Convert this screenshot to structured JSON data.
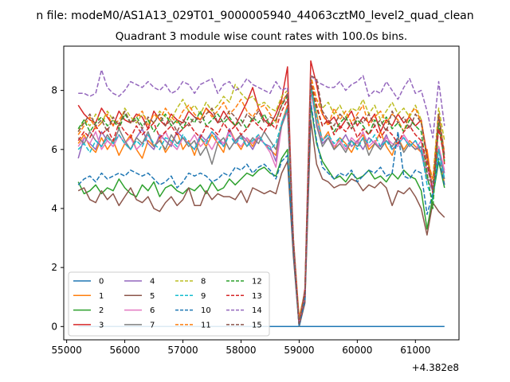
{
  "figure": {
    "suptitle": "n file: modeM0/AS1A13_029T01_9000005940_44063cztM0_level2_quad_clean",
    "title": "Quadrant 3 module wise count rates with 100.0s bins.",
    "offset_label": "+4.382e8"
  },
  "chart_data": {
    "type": "line",
    "title": "Quadrant 3 module wise count rates with 100.0s bins.",
    "xlabel": "",
    "ylabel": "",
    "x_offset_text": "+4.382e8",
    "xlim": [
      54950,
      61750
    ],
    "ylim": [
      -0.45,
      9.5
    ],
    "xticks": [
      55000,
      56000,
      57000,
      58000,
      59000,
      60000,
      61000
    ],
    "yticks": [
      0,
      2,
      4,
      6,
      8
    ],
    "grid": false,
    "legend": {
      "placement": "lower-left",
      "columns": 4
    },
    "x": [
      55200,
      55300,
      55400,
      55500,
      55600,
      55700,
      55800,
      55900,
      56000,
      56100,
      56200,
      56300,
      56400,
      56500,
      56600,
      56700,
      56800,
      56900,
      57000,
      57100,
      57200,
      57300,
      57400,
      57500,
      57600,
      57700,
      57800,
      57900,
      58000,
      58100,
      58200,
      58300,
      58400,
      58500,
      58600,
      58700,
      58800,
      58900,
      59000,
      59100,
      59200,
      59300,
      59400,
      59500,
      59600,
      59700,
      59800,
      59900,
      60000,
      60100,
      60200,
      60300,
      60400,
      60500,
      60600,
      60700,
      60800,
      60900,
      61000,
      61100,
      61200,
      61300,
      61400,
      61500
    ],
    "series": [
      {
        "name": "0",
        "color": "#1f77b4",
        "dash": "solid",
        "values": [
          0,
          0,
          0,
          0,
          0,
          0,
          0,
          0,
          0,
          0,
          0,
          0,
          0,
          0,
          0,
          0,
          0,
          0,
          0,
          0,
          0,
          0,
          0,
          0,
          0,
          0,
          0,
          0,
          0,
          0,
          0,
          0,
          0,
          0,
          0,
          0,
          0,
          0,
          0,
          0,
          0,
          0,
          0,
          0,
          0,
          0,
          0,
          0,
          0,
          0,
          0,
          0,
          0,
          0,
          0,
          0,
          0,
          0,
          0,
          0,
          0,
          0,
          0,
          0
        ]
      },
      {
        "name": "1",
        "color": "#ff7f0e",
        "dash": "solid",
        "values": [
          6.2,
          6.5,
          6.1,
          5.9,
          6.4,
          6.0,
          6.3,
          5.8,
          6.2,
          6.5,
          6.0,
          5.7,
          6.3,
          6.1,
          6.4,
          5.9,
          6.2,
          6.6,
          6.0,
          6.3,
          5.8,
          6.4,
          6.1,
          6.5,
          6.2,
          5.9,
          6.7,
          6.3,
          6.0,
          6.4,
          6.1,
          6.5,
          6.2,
          6.0,
          5.8,
          6.9,
          7.5,
          3.0,
          0.3,
          1.2,
          8.2,
          7.2,
          6.3,
          6.6,
          6.0,
          6.4,
          6.2,
          5.9,
          6.3,
          6.5,
          6.0,
          6.2,
          6.6,
          6.1,
          5.8,
          6.4,
          6.0,
          6.3,
          6.1,
          5.9,
          6.0,
          4.6,
          6.1,
          4.8
        ]
      },
      {
        "name": "2",
        "color": "#2ca02c",
        "dash": "solid",
        "values": [
          4.9,
          4.5,
          4.6,
          4.8,
          4.5,
          4.7,
          4.6,
          5.0,
          4.7,
          4.5,
          4.4,
          4.8,
          4.6,
          4.9,
          4.4,
          4.7,
          4.8,
          4.6,
          4.5,
          4.7,
          4.6,
          4.8,
          4.5,
          4.9,
          4.6,
          4.7,
          5.0,
          4.8,
          5.0,
          5.2,
          5.1,
          5.3,
          5.4,
          5.2,
          5.1,
          5.7,
          6.0,
          2.5,
          0.0,
          0.9,
          7.5,
          6.2,
          5.6,
          5.3,
          5.0,
          5.1,
          4.9,
          5.2,
          5.0,
          5.1,
          5.3,
          5.0,
          5.1,
          4.9,
          5.2,
          5.0,
          5.3,
          5.1,
          5.0,
          4.6,
          3.3,
          4.4,
          5.6,
          4.7
        ]
      },
      {
        "name": "3",
        "color": "#d62728",
        "dash": "solid",
        "values": [
          7.5,
          7.2,
          7.0,
          6.9,
          7.4,
          7.1,
          6.8,
          7.3,
          7.0,
          6.9,
          7.2,
          7.1,
          6.7,
          7.3,
          7.0,
          6.8,
          7.2,
          7.0,
          6.9,
          7.3,
          7.1,
          7.0,
          7.4,
          7.2,
          6.9,
          7.3,
          7.0,
          6.8,
          7.2,
          7.6,
          8.1,
          7.4,
          7.0,
          6.8,
          7.2,
          7.7,
          8.8,
          2.7,
          0.0,
          1.3,
          9.0,
          8.2,
          7.2,
          6.9,
          7.1,
          6.7,
          7.0,
          7.3,
          6.8,
          7.1,
          6.9,
          7.2,
          6.6,
          7.0,
          6.8,
          7.2,
          6.9,
          7.1,
          6.8,
          7.0,
          5.8,
          4.5,
          7.2,
          5.5
        ]
      },
      {
        "name": "4",
        "color": "#9467bd",
        "dash": "solid",
        "values": [
          5.7,
          6.4,
          6.2,
          6.0,
          6.6,
          6.3,
          6.1,
          6.5,
          6.2,
          6.0,
          6.4,
          6.7,
          6.2,
          6.0,
          6.5,
          6.3,
          6.1,
          6.6,
          6.4,
          6.2,
          6.0,
          6.5,
          6.3,
          6.6,
          6.4,
          6.1,
          6.7,
          6.2,
          6.5,
          6.3,
          6.0,
          6.4,
          6.2,
          6.1,
          5.6,
          6.9,
          7.4,
          2.8,
          0.1,
          1.1,
          8.0,
          6.9,
          6.2,
          6.4,
          6.0,
          6.2,
          6.5,
          6.1,
          6.3,
          6.0,
          6.4,
          6.2,
          6.1,
          6.5,
          6.0,
          6.2,
          6.4,
          6.1,
          6.3,
          5.9,
          5.0,
          4.6,
          6.0,
          5.2
        ]
      },
      {
        "name": "5",
        "color": "#8c564b",
        "dash": "solid",
        "values": [
          4.6,
          4.7,
          4.3,
          4.2,
          4.6,
          4.3,
          4.5,
          4.1,
          4.4,
          4.7,
          4.3,
          4.2,
          4.4,
          4.0,
          3.9,
          4.2,
          4.4,
          4.1,
          4.3,
          4.7,
          4.1,
          4.1,
          4.6,
          4.3,
          4.5,
          4.4,
          4.4,
          4.3,
          4.6,
          4.2,
          4.7,
          4.6,
          4.5,
          4.6,
          4.5,
          5.2,
          5.6,
          2.4,
          0.0,
          0.8,
          7.0,
          5.5,
          5.0,
          4.9,
          4.7,
          4.8,
          4.8,
          5.0,
          4.9,
          4.6,
          4.8,
          4.7,
          4.9,
          4.7,
          4.1,
          4.6,
          4.5,
          4.7,
          4.4,
          4.0,
          3.1,
          4.2,
          3.9,
          3.7
        ]
      },
      {
        "name": "6",
        "color": "#e377c2",
        "dash": "solid",
        "values": [
          6.1,
          6.4,
          6.2,
          6.6,
          6.0,
          6.3,
          6.1,
          6.5,
          6.2,
          6.4,
          6.0,
          6.2,
          6.5,
          6.1,
          6.3,
          6.6,
          6.2,
          6.0,
          6.4,
          6.2,
          6.5,
          6.1,
          6.3,
          6.0,
          6.4,
          6.2,
          6.6,
          6.3,
          6.1,
          6.4,
          6.2,
          6.5,
          6.2,
          5.9,
          5.4,
          6.8,
          7.3,
          2.9,
          0.1,
          1.0,
          8.1,
          6.9,
          6.3,
          6.5,
          6.1,
          6.3,
          6.0,
          6.4,
          6.2,
          6.6,
          6.1,
          6.3,
          6.0,
          6.4,
          6.2,
          6.1,
          6.5,
          6.2,
          6.0,
          6.3,
          5.3,
          4.8,
          6.1,
          5.3
        ]
      },
      {
        "name": "7",
        "color": "#7f7f7f",
        "dash": "solid",
        "values": [
          6.4,
          6.2,
          6.6,
          6.3,
          6.1,
          6.5,
          6.2,
          6.7,
          6.3,
          6.0,
          6.4,
          6.2,
          6.6,
          6.1,
          6.3,
          6.0,
          6.5,
          6.2,
          6.4,
          6.1,
          6.3,
          5.8,
          6.1,
          5.5,
          6.2,
          6.4,
          6.0,
          6.3,
          6.5,
          6.1,
          6.4,
          6.2,
          6.6,
          6.3,
          6.0,
          6.8,
          7.4,
          2.8,
          0.0,
          1.1,
          8.3,
          6.8,
          6.1,
          6.4,
          6.0,
          6.2,
          5.9,
          6.3,
          6.1,
          6.4,
          5.8,
          6.2,
          6.0,
          6.3,
          6.1,
          6.4,
          5.9,
          6.2,
          6.0,
          6.1,
          5.0,
          4.9,
          6.0,
          5.0
        ]
      },
      {
        "name": "8",
        "color": "#bcbd22",
        "dash": "dashed",
        "values": [
          6.6,
          7.0,
          6.8,
          7.2,
          6.9,
          7.3,
          7.0,
          6.8,
          7.4,
          7.1,
          6.9,
          7.2,
          7.0,
          6.9,
          7.3,
          7.1,
          7.0,
          7.4,
          7.7,
          7.3,
          7.5,
          7.2,
          7.6,
          7.3,
          7.5,
          7.8,
          7.6,
          8.2,
          7.9,
          7.7,
          7.8,
          7.5,
          7.6,
          7.4,
          7.3,
          7.8,
          8.0,
          3.0,
          0.2,
          1.2,
          8.4,
          7.7,
          7.4,
          7.6,
          7.2,
          7.5,
          7.1,
          7.4,
          7.3,
          7.7,
          7.2,
          7.5,
          7.0,
          7.3,
          7.6,
          7.2,
          7.4,
          7.1,
          7.5,
          7.0,
          5.6,
          5.0,
          7.4,
          6.3
        ]
      },
      {
        "name": "9",
        "color": "#17becf",
        "dash": "dashed",
        "values": [
          6.0,
          6.2,
          5.9,
          6.3,
          6.1,
          6.4,
          6.2,
          6.5,
          6.2,
          6.0,
          6.3,
          6.1,
          6.5,
          6.2,
          6.0,
          6.4,
          6.3,
          6.1,
          6.5,
          6.2,
          6.0,
          6.4,
          6.2,
          6.6,
          6.3,
          6.1,
          6.5,
          6.2,
          6.4,
          6.1,
          6.3,
          6.5,
          6.2,
          6.0,
          6.2,
          6.9,
          7.4,
          2.9,
          0.1,
          1.1,
          8.1,
          7.1,
          6.3,
          6.5,
          6.2,
          6.4,
          6.1,
          6.3,
          6.0,
          6.4,
          6.2,
          6.5,
          6.1,
          6.3,
          6.0,
          6.2,
          6.4,
          6.1,
          6.3,
          6.0,
          4.8,
          4.3,
          6.0,
          5.0
        ]
      },
      {
        "name": "10",
        "color": "#1f77b4",
        "dash": "dashed",
        "values": [
          4.8,
          5.0,
          5.1,
          4.9,
          5.2,
          5.0,
          5.1,
          5.2,
          5.1,
          5.3,
          5.2,
          5.1,
          5.2,
          5.0,
          4.8,
          4.9,
          5.1,
          4.7,
          4.9,
          5.2,
          5.1,
          5.2,
          5.1,
          4.9,
          5.0,
          5.2,
          5.1,
          5.4,
          5.3,
          5.5,
          5.2,
          5.4,
          5.5,
          5.3,
          5.0,
          5.6,
          5.8,
          2.6,
          0.0,
          0.9,
          7.6,
          6.3,
          5.4,
          5.2,
          5.0,
          5.2,
          5.1,
          5.3,
          4.9,
          5.1,
          5.3,
          5.2,
          5.4,
          5.1,
          5.2,
          6.6,
          5.1,
          5.0,
          5.3,
          5.2,
          3.8,
          4.5,
          5.7,
          4.8
        ]
      },
      {
        "name": "11",
        "color": "#ff7f0e",
        "dash": "dashed",
        "values": [
          6.5,
          6.8,
          7.1,
          6.7,
          6.9,
          7.2,
          6.8,
          7.0,
          7.3,
          6.9,
          7.1,
          7.3,
          6.8,
          7.2,
          7.0,
          7.4,
          7.1,
          6.9,
          7.3,
          7.5,
          7.2,
          7.0,
          7.4,
          7.1,
          7.3,
          7.6,
          7.2,
          7.4,
          7.7,
          7.3,
          7.1,
          7.4,
          7.5,
          7.2,
          6.9,
          7.6,
          7.9,
          3.0,
          0.2,
          1.2,
          8.5,
          7.7,
          7.2,
          6.8,
          7.4,
          7.0,
          7.3,
          6.9,
          7.2,
          7.5,
          6.8,
          7.1,
          7.3,
          6.9,
          7.2,
          7.0,
          6.6,
          7.2,
          7.4,
          6.9,
          5.7,
          5.0,
          7.2,
          5.9
        ]
      },
      {
        "name": "12",
        "color": "#2ca02c",
        "dash": "dashed",
        "values": [
          6.7,
          7.0,
          6.6,
          6.9,
          7.1,
          6.8,
          7.0,
          6.7,
          7.2,
          6.9,
          7.1,
          6.8,
          7.0,
          6.6,
          6.9,
          7.2,
          6.8,
          7.0,
          6.7,
          7.1,
          6.9,
          7.3,
          6.8,
          7.0,
          7.2,
          6.9,
          7.1,
          6.8,
          7.0,
          6.7,
          7.1,
          6.9,
          7.2,
          6.8,
          7.0,
          7.5,
          7.8,
          2.9,
          0.1,
          1.2,
          8.2,
          7.4,
          6.8,
          7.0,
          6.6,
          6.9,
          7.1,
          6.7,
          7.0,
          6.8,
          6.5,
          7.0,
          6.8,
          7.1,
          6.7,
          6.9,
          6.6,
          7.0,
          6.8,
          6.6,
          5.2,
          4.0,
          6.9,
          5.6
        ]
      },
      {
        "name": "13",
        "color": "#d62728",
        "dash": "dashed",
        "values": [
          6.3,
          6.6,
          6.4,
          6.8,
          6.5,
          6.7,
          6.3,
          6.9,
          6.6,
          6.4,
          6.8,
          6.5,
          6.7,
          6.9,
          6.4,
          6.6,
          6.8,
          6.5,
          6.7,
          6.9,
          6.6,
          6.4,
          6.8,
          6.7,
          6.5,
          6.9,
          6.6,
          6.8,
          6.5,
          6.7,
          7.0,
          6.8,
          6.6,
          6.9,
          6.7,
          7.3,
          7.7,
          2.9,
          0.1,
          1.1,
          8.3,
          7.5,
          6.8,
          7.0,
          6.5,
          6.8,
          6.6,
          6.9,
          6.4,
          6.7,
          6.5,
          6.8,
          6.4,
          6.7,
          6.5,
          6.2,
          6.6,
          6.8,
          6.5,
          6.3,
          5.5,
          4.6,
          6.7,
          5.7
        ]
      },
      {
        "name": "14",
        "color": "#9467bd",
        "dash": "dashed",
        "values": [
          7.9,
          7.9,
          7.8,
          7.9,
          8.7,
          8.1,
          7.9,
          7.8,
          8.0,
          8.3,
          8.2,
          8.1,
          8.3,
          8.1,
          8.0,
          8.2,
          7.9,
          8.0,
          8.3,
          8.2,
          7.9,
          8.2,
          8.3,
          8.4,
          7.9,
          8.2,
          8.3,
          8.0,
          8.1,
          8.4,
          8.2,
          8.1,
          8.0,
          7.9,
          8.3,
          8.0,
          8.1,
          3.0,
          0.1,
          1.2,
          8.5,
          8.3,
          8.2,
          8.1,
          8.1,
          8.3,
          8.0,
          8.2,
          8.3,
          8.5,
          7.8,
          8.0,
          7.9,
          8.3,
          8.0,
          7.7,
          8.1,
          8.4,
          7.9,
          8.0,
          7.3,
          6.4,
          8.3,
          6.8
        ]
      },
      {
        "name": "15",
        "color": "#8c564b",
        "dash": "dashed",
        "values": [
          6.6,
          6.9,
          7.2,
          6.8,
          7.0,
          6.6,
          7.1,
          6.8,
          7.3,
          6.9,
          7.0,
          6.7,
          7.1,
          6.9,
          7.2,
          6.8,
          7.0,
          6.6,
          7.0,
          6.8,
          7.1,
          6.9,
          7.2,
          7.4,
          6.9,
          7.0,
          7.3,
          7.1,
          6.8,
          7.2,
          7.0,
          7.3,
          6.9,
          7.1,
          7.0,
          7.5,
          7.9,
          2.9,
          0.1,
          1.2,
          8.5,
          8.4,
          7.3,
          7.0,
          6.8,
          7.2,
          7.0,
          6.7,
          7.1,
          6.9,
          7.2,
          6.8,
          7.0,
          6.6,
          7.3,
          6.9,
          7.1,
          6.7,
          7.2,
          6.9,
          5.7,
          4.6,
          7.2,
          5.8
        ]
      }
    ]
  }
}
